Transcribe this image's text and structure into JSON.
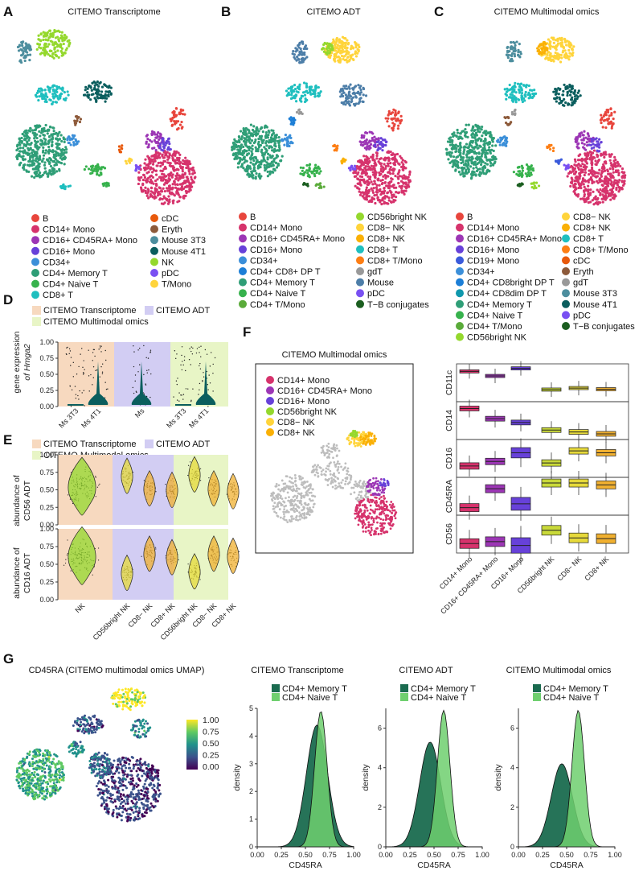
{
  "panels": {
    "A": {
      "letter": "A",
      "title": "CITEMO Transcriptome",
      "legend_col1": [
        [
          "B",
          "#e8453c"
        ],
        [
          "CD14+ Mono",
          "#d6336c"
        ],
        [
          "CD16+ CD45RA+ Mono",
          "#9c36b5"
        ],
        [
          "CD16+ Mono",
          "#6741d9"
        ],
        [
          "CD34+",
          "#3b8fd9"
        ],
        [
          "CD4+ Memory T",
          "#2f9e77"
        ],
        [
          "CD4+ Naive T",
          "#37b24d"
        ],
        [
          "CD8+ T",
          "#1fbfbf"
        ]
      ],
      "legend_col2": [
        [
          "cDC",
          "#e8590c"
        ],
        [
          "Eryth",
          "#8d5a3a"
        ],
        [
          "Mouse 3T3",
          "#4d8e9e"
        ],
        [
          "Mouse 4T1",
          "#0b5e5e"
        ],
        [
          "NK",
          "#94d82d"
        ],
        [
          "pDC",
          "#7950f2"
        ],
        [
          "T/Mono",
          "#ffd43b"
        ]
      ]
    },
    "B": {
      "letter": "B",
      "title": "CITEMO ADT",
      "legend_col1": [
        [
          "B",
          "#e8453c"
        ],
        [
          "CD14+ Mono",
          "#d6336c"
        ],
        [
          "CD16+ CD45RA+ Mono",
          "#9c36b5"
        ],
        [
          "CD16+ Mono",
          "#6741d9"
        ],
        [
          "CD34+",
          "#3b8fd9"
        ],
        [
          "CD4+ CD8+ DP T",
          "#1c7ed6"
        ],
        [
          "CD4+ Memory T",
          "#2f9e77"
        ],
        [
          "CD4+ Naive T",
          "#37b24d"
        ],
        [
          "CD4+ T/Mono",
          "#5aab3a"
        ]
      ],
      "legend_col2": [
        [
          "CD56bright NK",
          "#94d82d"
        ],
        [
          "CD8− NK",
          "#ffd43b"
        ],
        [
          "CD8+ NK",
          "#fab005"
        ],
        [
          "CD8+ T",
          "#1fbfbf"
        ],
        [
          "CD8+ T/Mono",
          "#fd7e14"
        ],
        [
          "gdT",
          "#999999"
        ],
        [
          "Mouse",
          "#4d7ea8"
        ],
        [
          "pDC",
          "#7950f2"
        ],
        [
          "T−B conjugates",
          "#1b5e20"
        ]
      ]
    },
    "C": {
      "letter": "C",
      "title": "CITEMO Multimodal omics",
      "legend_col1": [
        [
          "B",
          "#e8453c"
        ],
        [
          "CD14+ Mono",
          "#d6336c"
        ],
        [
          "CD16+ CD45RA+ Mono",
          "#9c36b5"
        ],
        [
          "CD16+ Mono",
          "#6741d9"
        ],
        [
          "CD19+ Mono",
          "#3b5bdb"
        ],
        [
          "CD34+",
          "#3b8fd9"
        ],
        [
          "CD4+ CD8bright DP T",
          "#1c7ed6"
        ],
        [
          "CD4+ CD8dim DP T",
          "#1098ad"
        ],
        [
          "CD4+ Memory T",
          "#2f9e77"
        ],
        [
          "CD4+ Naive T",
          "#37b24d"
        ],
        [
          "CD4+ T/Mono",
          "#5aab3a"
        ],
        [
          "CD56bright NK",
          "#94d82d"
        ]
      ],
      "legend_col2": [
        [
          "CD8− NK",
          "#ffd43b"
        ],
        [
          "CD8+ NK",
          "#fab005"
        ],
        [
          "CD8+ T",
          "#1fbfbf"
        ],
        [
          "CD8+ T/Mono",
          "#fd7e14"
        ],
        [
          "cDC",
          "#e8590c"
        ],
        [
          "Eryth",
          "#8d5a3a"
        ],
        [
          "gdT",
          "#999999"
        ],
        [
          "Mouse 3T3",
          "#4d8e9e"
        ],
        [
          "Mouse 4T1",
          "#0b5e5e"
        ],
        [
          "pDC",
          "#7950f2"
        ],
        [
          "T−B conjugates",
          "#1b5e20"
        ]
      ]
    },
    "D": {
      "letter": "D",
      "legend": [
        [
          "CITEMO Transcriptome",
          "#f7d9bf"
        ],
        [
          "CITEMO ADT",
          "#d2cdf3"
        ],
        [
          "CITEMO Multimodal omics",
          "#e8f5c6"
        ]
      ],
      "ylabel1": "gene expression",
      "ylabel2": "of Hmga2"
    },
    "E": {
      "letter": "E",
      "legend": [
        [
          "CITEMO Transcriptome",
          "#f7d9bf"
        ],
        [
          "CITEMO ADT",
          "#d2cdf3"
        ],
        [
          "CITEMO Multimodal omics",
          "#e8f5c6"
        ]
      ],
      "ylabel_top1": "abundance of",
      "ylabel_top2": "CD56 ADT",
      "ylabel_bot1": "abundance of",
      "ylabel_bot2": "CD16 ADT"
    },
    "F": {
      "letter": "F",
      "title": "CITEMO Multimodal omics",
      "legend": [
        [
          "CD14+ Mono",
          "#d6336c"
        ],
        [
          "CD16+ CD45RA+ Mono",
          "#9c36b5"
        ],
        [
          "CD16+ Mono",
          "#6741d9"
        ],
        [
          "CD56bright NK",
          "#94d82d"
        ],
        [
          "CD8− NK",
          "#ffd43b"
        ],
        [
          "CD8+ NK",
          "#fab005"
        ]
      ],
      "row_labels": [
        "CD11c",
        "CD14",
        "CD16",
        "CD45RA",
        "CD56"
      ]
    },
    "G": {
      "letter": "G",
      "title": "CD45RA (CITEMO multimodal omics UMAP)",
      "colorbar_ticks": [
        "1.00",
        "0.75",
        "0.50",
        "0.25",
        "0.00"
      ],
      "density_legend": [
        [
          "CD4+ Memory T",
          "#1a6b4f"
        ],
        [
          "CD4+ Naive T",
          "#6fcf6f"
        ]
      ],
      "density_ylabel": "density"
    }
  },
  "chart_data": [
    {
      "id": "D",
      "type": "violin",
      "ylim": [
        0,
        1
      ],
      "yticks": [
        "0.00",
        "0.25",
        "0.50",
        "0.75",
        "1.00"
      ],
      "categories": [
        "Ms 3T3",
        "Ms 4T1",
        "Ms",
        "Ms 3T3",
        "Ms 4T1"
      ],
      "groups": [
        "CITEMO Transcriptome",
        "CITEMO Transcriptome",
        "CITEMO ADT",
        "CITEMO Multimodal omics",
        "CITEMO Multimodal omics"
      ],
      "violin_max": [
        0.02,
        0.7,
        0.7,
        0.02,
        0.7
      ]
    },
    {
      "id": "E",
      "type": "violin",
      "ylim": [
        0,
        1
      ],
      "yticks": [
        "0.00",
        "0.25",
        "0.50",
        "0.75",
        "1.00"
      ],
      "categories": [
        "NK",
        "CD56bright NK",
        "CD8− NK",
        "CD8+ NK",
        "CD56bright NK",
        "CD8− NK",
        "CD8+ NK"
      ],
      "groups": [
        "CITEMO Transcriptome",
        "CITEMO ADT",
        "CITEMO ADT",
        "CITEMO ADT",
        "CITEMO Multimodal omics",
        "CITEMO Multimodal omics",
        "CITEMO Multimodal omics"
      ],
      "CD56_median": [
        0.55,
        0.7,
        0.52,
        0.5,
        0.72,
        0.52,
        0.48
      ],
      "CD16_median": [
        0.62,
        0.38,
        0.65,
        0.6,
        0.4,
        0.65,
        0.62
      ]
    },
    {
      "id": "F",
      "type": "boxplot",
      "ylim": [
        0,
        1
      ],
      "categories": [
        "CD14+ Mono",
        "CD16+ CD45RA+ Mono",
        "CD16+ Mono",
        "CD56bright NK",
        "CD8− NK",
        "CD8+ NK"
      ],
      "markers": [
        {
          "name": "CD11c",
          "median": [
            0.8,
            0.68,
            0.88,
            0.32,
            0.36,
            0.33
          ]
        },
        {
          "name": "CD14",
          "median": [
            0.82,
            0.55,
            0.45,
            0.25,
            0.2,
            0.15
          ]
        },
        {
          "name": "CD16",
          "median": [
            0.3,
            0.42,
            0.65,
            0.38,
            0.7,
            0.65
          ]
        },
        {
          "name": "CD45RA",
          "median": [
            0.2,
            0.7,
            0.3,
            0.85,
            0.85,
            0.8
          ]
        },
        {
          "name": "CD56",
          "median": [
            0.25,
            0.3,
            0.2,
            0.6,
            0.4,
            0.38
          ]
        }
      ]
    },
    {
      "id": "G1",
      "type": "density",
      "title": "CITEMO Transcriptome",
      "xlabel": "CD45RA",
      "ylabel": "density",
      "xlim": [
        0,
        1
      ],
      "xticks": [
        "0.00",
        "0.25",
        "0.50",
        "0.75",
        "1.00"
      ],
      "ylim": [
        0,
        5
      ],
      "yticks": [
        "0",
        "1",
        "2",
        "3",
        "4",
        "5"
      ],
      "series": [
        {
          "name": "CD4+ Memory T",
          "peak_x": 0.62,
          "peak_y": 4.4
        },
        {
          "name": "CD4+ Naive T",
          "peak_x": 0.66,
          "peak_y": 4.9
        }
      ]
    },
    {
      "id": "G2",
      "type": "density",
      "title": "CITEMO ADT",
      "xlabel": "CD45RA",
      "ylabel": "density",
      "xlim": [
        0,
        1
      ],
      "xticks": [
        "0.00",
        "0.25",
        "0.50",
        "0.75",
        "1.00"
      ],
      "ylim": [
        0,
        7
      ],
      "yticks": [
        "0",
        "2",
        "4",
        "6"
      ],
      "series": [
        {
          "name": "CD4+ Memory T",
          "peak_x": 0.46,
          "peak_y": 5.3
        },
        {
          "name": "CD4+ Naive T",
          "peak_x": 0.6,
          "peak_y": 6.9
        }
      ]
    },
    {
      "id": "G3",
      "type": "density",
      "title": "CITEMO Multimodal omics",
      "xlabel": "CD45RA",
      "ylabel": "density",
      "xlim": [
        0,
        1
      ],
      "xticks": [
        "0.00",
        "0.25",
        "0.50",
        "0.75",
        "1.00"
      ],
      "ylim": [
        0,
        7
      ],
      "yticks": [
        "0",
        "2",
        "4",
        "6"
      ],
      "series": [
        {
          "name": "CD4+ Memory T",
          "peak_x": 0.45,
          "peak_y": 4.2
        },
        {
          "name": "CD4+ Naive T",
          "peak_x": 0.62,
          "peak_y": 6.9
        }
      ]
    }
  ]
}
